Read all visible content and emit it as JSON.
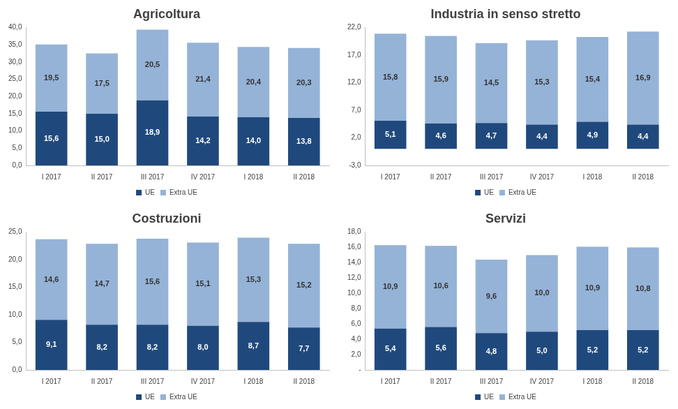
{
  "chart_data": [
    {
      "type": "bar",
      "title": "Agricoltura",
      "categories": [
        "I 2017",
        "II 2017",
        "III 2017",
        "IV 2017",
        "I 2018",
        "II 2018"
      ],
      "series": [
        {
          "name": "UE",
          "color": "#1f497d",
          "values": [
            15.6,
            15.0,
            18.9,
            14.2,
            14.0,
            13.8
          ],
          "value_labels": [
            "15,6",
            "15,0",
            "18,9",
            "14,2",
            "14,0",
            "13,8"
          ]
        },
        {
          "name": "Extra UE",
          "color": "#95b3d7",
          "values": [
            19.5,
            17.5,
            20.5,
            21.4,
            20.4,
            20.3
          ],
          "value_labels": [
            "19,5",
            "17,5",
            "20,5",
            "21,4",
            "20,4",
            "20,3"
          ]
        }
      ],
      "ylim": [
        0,
        40
      ],
      "yticks": [
        {
          "value": 0,
          "label": "0,0"
        },
        {
          "value": 5,
          "label": "5,0"
        },
        {
          "value": 10,
          "label": "10,0"
        },
        {
          "value": 15,
          "label": "15,0"
        },
        {
          "value": 20,
          "label": "20,0"
        },
        {
          "value": 25,
          "label": "25,0"
        },
        {
          "value": 30,
          "label": "30,0"
        },
        {
          "value": 35,
          "label": "35,0"
        },
        {
          "value": 40,
          "label": "40,0"
        }
      ],
      "grid": false,
      "legend": "bottom",
      "stacked": true,
      "data_labels": true
    },
    {
      "type": "bar",
      "title": "Industria in senso stretto",
      "categories": [
        "I 2017",
        "II 2017",
        "III 2017",
        "IV 2017",
        "I 2018",
        "II 2018"
      ],
      "series": [
        {
          "name": "UE",
          "color": "#1f497d",
          "values": [
            5.1,
            4.6,
            4.7,
            4.4,
            4.9,
            4.4
          ],
          "value_labels": [
            "5,1",
            "4,6",
            "4,7",
            "4,4",
            "4,9",
            "4,4"
          ]
        },
        {
          "name": "Extra UE",
          "color": "#95b3d7",
          "values": [
            15.8,
            15.9,
            14.5,
            15.3,
            15.4,
            16.9
          ],
          "value_labels": [
            "15,8",
            "15,9",
            "14,5",
            "15,3",
            "15,4",
            "16,9"
          ]
        }
      ],
      "ylim": [
        -3,
        22
      ],
      "yticks": [
        {
          "value": -3,
          "label": "-3,0"
        },
        {
          "value": 2,
          "label": "2,0"
        },
        {
          "value": 7,
          "label": "7,0"
        },
        {
          "value": 12,
          "label": "12,0"
        },
        {
          "value": 17,
          "label": "17,0"
        },
        {
          "value": 22,
          "label": "22,0"
        }
      ],
      "grid": false,
      "legend": "bottom",
      "stacked": true,
      "data_labels": true
    },
    {
      "type": "bar",
      "title": "Costruzioni",
      "categories": [
        "I 2017",
        "II 2017",
        "III 2017",
        "IV 2017",
        "I 2018",
        "II 2018"
      ],
      "series": [
        {
          "name": "UE",
          "color": "#1f497d",
          "values": [
            9.1,
            8.2,
            8.2,
            8.0,
            8.7,
            7.7
          ],
          "value_labels": [
            "9,1",
            "8,2",
            "8,2",
            "8,0",
            "8,7",
            "7,7"
          ]
        },
        {
          "name": "Extra UE",
          "color": "#95b3d7",
          "values": [
            14.6,
            14.7,
            15.6,
            15.1,
            15.3,
            15.2
          ],
          "value_labels": [
            "14,6",
            "14,7",
            "15,6",
            "15,1",
            "15,3",
            "15,2"
          ]
        }
      ],
      "ylim": [
        0,
        25
      ],
      "yticks": [
        {
          "value": 0,
          "label": "0,0"
        },
        {
          "value": 5,
          "label": "5,0"
        },
        {
          "value": 10,
          "label": "10,0"
        },
        {
          "value": 15,
          "label": "15,0"
        },
        {
          "value": 20,
          "label": "20,0"
        },
        {
          "value": 25,
          "label": "25,0"
        }
      ],
      "grid": false,
      "legend": "bottom",
      "stacked": true,
      "data_labels": true
    },
    {
      "type": "bar",
      "title": "Servizi",
      "categories": [
        "I 2017",
        "II 2017",
        "III 2017",
        "IV 2017",
        "I 2018",
        "II 2018"
      ],
      "series": [
        {
          "name": "UE",
          "color": "#1f497d",
          "values": [
            5.4,
            5.6,
            4.8,
            5.0,
            5.2,
            5.2
          ],
          "value_labels": [
            "5,4",
            "5,6",
            "4,8",
            "5,0",
            "5,2",
            "5,2"
          ]
        },
        {
          "name": "Extra UE",
          "color": "#95b3d7",
          "values": [
            10.9,
            10.6,
            9.6,
            10.0,
            10.9,
            10.8
          ],
          "value_labels": [
            "10,9",
            "10,6",
            "9,6",
            "10,0",
            "10,9",
            "10,8"
          ]
        }
      ],
      "ylim": [
        0,
        18
      ],
      "yticks": [
        {
          "value": 0,
          "label": "-"
        },
        {
          "value": 2,
          "label": "2,0"
        },
        {
          "value": 4,
          "label": "4,0"
        },
        {
          "value": 6,
          "label": "6,0"
        },
        {
          "value": 8,
          "label": "8,0"
        },
        {
          "value": 10,
          "label": "10,0"
        },
        {
          "value": 12,
          "label": "12,0"
        },
        {
          "value": 14,
          "label": "14,0"
        },
        {
          "value": 16,
          "label": "16,0"
        },
        {
          "value": 18,
          "label": "18,0"
        }
      ],
      "grid": false,
      "legend": "bottom",
      "stacked": true,
      "data_labels": true
    }
  ]
}
